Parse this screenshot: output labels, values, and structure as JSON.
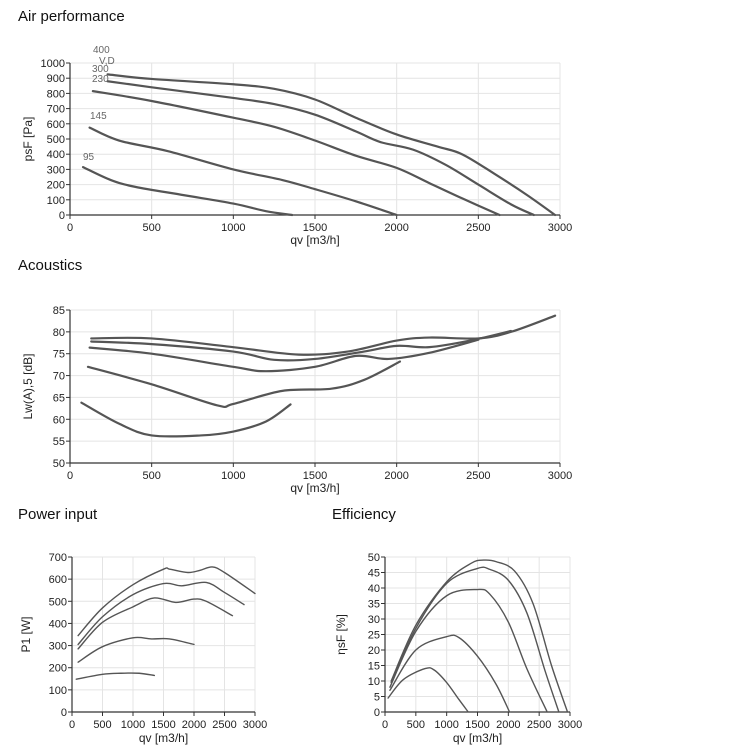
{
  "chart_data": [
    {
      "type": "line",
      "title": "Air performance",
      "xlabel": "qv [m3/h]",
      "ylabel": "psF [Pa]",
      "xlim": [
        0,
        3000
      ],
      "ylim": [
        0,
        1000
      ],
      "xticks": [
        0,
        500,
        1000,
        1500,
        2000,
        2500,
        3000
      ],
      "yticks": [
        0,
        100,
        200,
        300,
        400,
        500,
        600,
        700,
        800,
        900,
        1000
      ],
      "grid": true,
      "annotations": [
        "400",
        "V,D",
        "300",
        "230",
        "145",
        "95"
      ],
      "series": [
        {
          "name": "400",
          "x": [
            230,
            500,
            1000,
            1250,
            1500,
            1750,
            2000,
            2250,
            2400,
            2600,
            2800,
            2970
          ],
          "y": [
            925,
            895,
            860,
            830,
            760,
            640,
            530,
            450,
            400,
            270,
            130,
            0
          ]
        },
        {
          "name": "300",
          "x": [
            230,
            500,
            1000,
            1250,
            1500,
            1750,
            1900,
            2100,
            2300,
            2500,
            2700,
            2840
          ],
          "y": [
            880,
            840,
            770,
            730,
            660,
            550,
            480,
            430,
            330,
            200,
            70,
            0
          ]
        },
        {
          "name": "230",
          "x": [
            140,
            500,
            1000,
            1250,
            1500,
            1750,
            2000,
            2200,
            2400,
            2630
          ],
          "y": [
            815,
            750,
            640,
            580,
            490,
            390,
            310,
            210,
            110,
            0
          ]
        },
        {
          "name": "145",
          "x": [
            120,
            300,
            600,
            1000,
            1300,
            1500,
            1750,
            2000
          ],
          "y": [
            575,
            490,
            420,
            300,
            230,
            170,
            90,
            0
          ]
        },
        {
          "name": "95",
          "x": [
            80,
            250,
            400,
            700,
            1000,
            1200,
            1360
          ],
          "y": [
            315,
            230,
            185,
            130,
            75,
            25,
            0
          ]
        }
      ]
    },
    {
      "type": "line",
      "title": "Acoustics",
      "xlabel": "qv [m3/h]",
      "ylabel": "Lw(A),5 [dB]",
      "xlim": [
        0,
        3000
      ],
      "ylim": [
        50,
        85
      ],
      "xticks": [
        0,
        500,
        1000,
        1500,
        2000,
        2500,
        3000
      ],
      "yticks": [
        50,
        55,
        60,
        65,
        70,
        75,
        80,
        85
      ],
      "grid": true,
      "series": [
        {
          "name": "400",
          "x": [
            130,
            500,
            1000,
            1400,
            1700,
            2000,
            2200,
            2500,
            2700,
            2970
          ],
          "y": [
            78.5,
            78.5,
            76.5,
            74.8,
            75.5,
            78,
            78.7,
            78.5,
            80,
            83.7
          ]
        },
        {
          "name": "300",
          "x": [
            130,
            500,
            1000,
            1250,
            1500,
            1800,
            2000,
            2200,
            2450,
            2700
          ],
          "y": [
            77.8,
            77.2,
            75.5,
            73.6,
            73.8,
            75.5,
            76.8,
            76.5,
            78,
            80.2
          ]
        },
        {
          "name": "230",
          "x": [
            120,
            500,
            1000,
            1200,
            1500,
            1750,
            1950,
            2200,
            2500
          ],
          "y": [
            76.4,
            75,
            72,
            71,
            72,
            74.5,
            73.8,
            75.2,
            78.2
          ]
        },
        {
          "name": "145",
          "x": [
            110,
            500,
            900,
            1000,
            1300,
            1600,
            1800,
            2020
          ],
          "y": [
            72,
            68,
            63.2,
            63.5,
            66.5,
            67,
            69,
            73.2
          ]
        },
        {
          "name": "95",
          "x": [
            70,
            300,
            500,
            800,
            1000,
            1200,
            1350
          ],
          "y": [
            63.8,
            59,
            56.3,
            56.3,
            57.2,
            59.5,
            63.4
          ]
        }
      ]
    },
    {
      "type": "line",
      "title": "Power input",
      "xlabel": "qv [m3/h]",
      "ylabel": "P1 [W]",
      "xlim": [
        0,
        3000
      ],
      "ylim": [
        0,
        700
      ],
      "xticks": [
        0,
        500,
        1000,
        1500,
        2000,
        2500,
        3000
      ],
      "yticks": [
        0,
        100,
        200,
        300,
        400,
        500,
        600,
        700
      ],
      "grid": true,
      "series": [
        {
          "name": "400",
          "x": [
            100,
            500,
            1000,
            1500,
            1600,
            1900,
            2100,
            2300,
            2500,
            3000
          ],
          "y": [
            345,
            470,
            575,
            645,
            645,
            630,
            640,
            655,
            630,
            535
          ]
        },
        {
          "name": "300",
          "x": [
            100,
            500,
            1000,
            1500,
            1800,
            2200,
            2500,
            2820
          ],
          "y": [
            305,
            430,
            530,
            580,
            570,
            585,
            540,
            485
          ]
        },
        {
          "name": "230",
          "x": [
            100,
            500,
            1000,
            1350,
            1700,
            2000,
            2200,
            2630
          ],
          "y": [
            285,
            405,
            475,
            515,
            495,
            510,
            500,
            435
          ]
        },
        {
          "name": "145",
          "x": [
            100,
            500,
            1000,
            1300,
            1600,
            2000
          ],
          "y": [
            225,
            295,
            335,
            330,
            330,
            305
          ]
        },
        {
          "name": "95",
          "x": [
            70,
            500,
            800,
            1100,
            1350
          ],
          "y": [
            148,
            170,
            175,
            175,
            165
          ]
        }
      ]
    },
    {
      "type": "line",
      "title": "Efficiency",
      "xlabel": "qv [m3/h]",
      "ylabel": "ηsF [%]",
      "xlim": [
        0,
        3000
      ],
      "ylim": [
        0,
        50
      ],
      "xticks": [
        0,
        500,
        1000,
        1500,
        2000,
        2500,
        3000
      ],
      "yticks": [
        0,
        5,
        10,
        15,
        20,
        25,
        30,
        35,
        40,
        45,
        50
      ],
      "grid": true,
      "series": [
        {
          "name": "400",
          "x": [
            100,
            500,
            1000,
            1400,
            1600,
            1800,
            2100,
            2400,
            2700,
            2960
          ],
          "y": [
            10,
            28,
            42,
            48,
            49,
            48.5,
            45.5,
            35,
            15,
            0
          ]
        },
        {
          "name": "300",
          "x": [
            100,
            500,
            1000,
            1500,
            1700,
            2000,
            2300,
            2600,
            2820
          ],
          "y": [
            9.5,
            27,
            41.5,
            46.3,
            46,
            42.5,
            32,
            13,
            0
          ]
        },
        {
          "name": "230",
          "x": [
            80,
            500,
            1000,
            1500,
            1700,
            2000,
            2300,
            2630
          ],
          "y": [
            8,
            26,
            37.5,
            39.5,
            38,
            29,
            14,
            0
          ]
        },
        {
          "name": "145",
          "x": [
            80,
            500,
            1000,
            1200,
            1500,
            1800,
            2020
          ],
          "y": [
            7,
            20,
            24.3,
            24,
            18,
            9,
            0
          ]
        },
        {
          "name": "95",
          "x": [
            50,
            300,
            650,
            800,
            1000,
            1200,
            1350
          ],
          "y": [
            4.5,
            10.5,
            14,
            13.5,
            9.5,
            4,
            0
          ]
        }
      ]
    }
  ],
  "colors": {
    "line": "#555555",
    "grid": "#e4e4e4",
    "axis": "#333333",
    "text": "#222222"
  }
}
